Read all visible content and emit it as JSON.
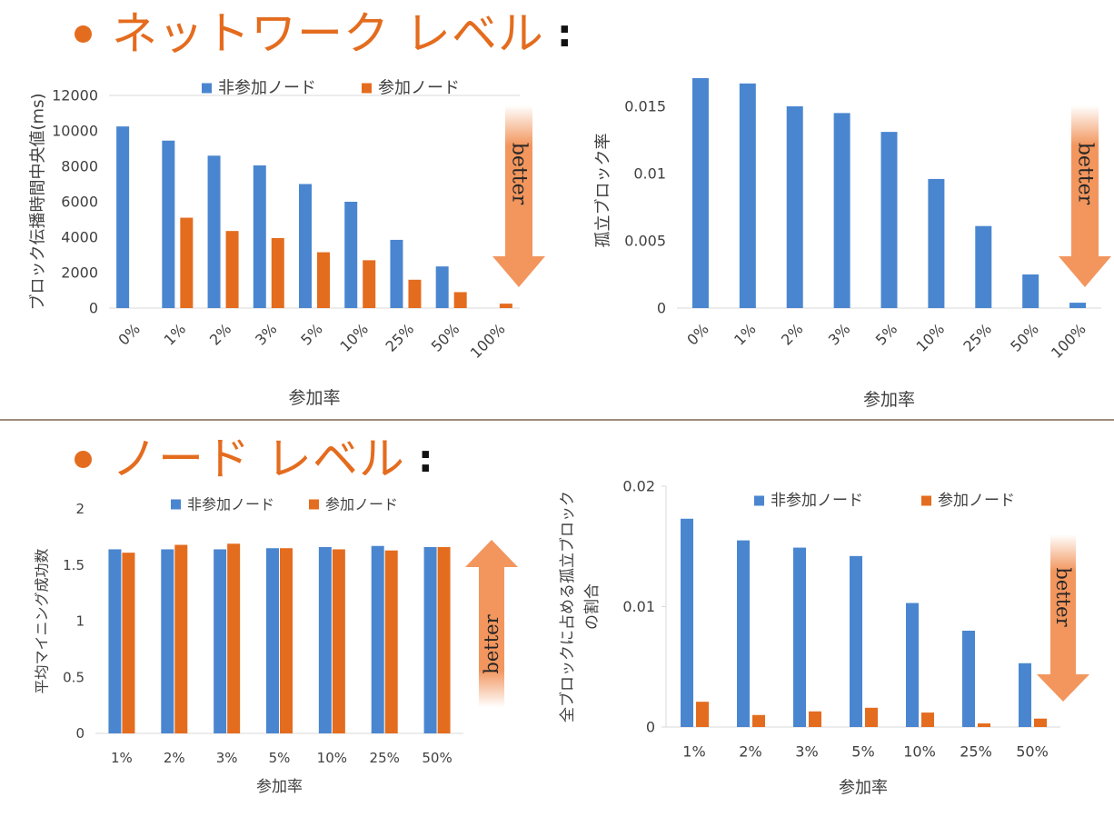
{
  "sections": [
    {
      "title": "ネットワーク レベル",
      "colon": ":"
    },
    {
      "title": "ノード レベル",
      "colon": ":"
    }
  ],
  "colors": {
    "heading": "#E46C1E",
    "non_participant": "#4A86D0",
    "participant": "#E46C1E",
    "arrow": "#F2965E",
    "divider": "#9E8B7D",
    "axis": "#D9D9D9",
    "text": "#404040"
  },
  "better_label": "better",
  "chart_data": [
    {
      "type": "bar",
      "categories": [
        "0%",
        "1%",
        "2%",
        "3%",
        "5%",
        "10%",
        "25%",
        "50%",
        "100%"
      ],
      "series": [
        {
          "name": "非参加ノード",
          "values": [
            10250,
            9450,
            8600,
            8050,
            7000,
            6000,
            3850,
            2350,
            null
          ]
        },
        {
          "name": "参加ノード",
          "values": [
            null,
            5100,
            4350,
            3950,
            3150,
            2700,
            1600,
            900,
            250
          ]
        }
      ],
      "xlabel": "参加率",
      "ylabel": "ブロック伝播時間中央値(ms)",
      "ylim": [
        0,
        12000
      ],
      "yticks": [
        "0",
        "2000",
        "4000",
        "6000",
        "8000",
        "10000",
        "12000"
      ],
      "legend": "top",
      "arrow_direction": "down"
    },
    {
      "type": "bar",
      "categories": [
        "0%",
        "1%",
        "2%",
        "3%",
        "5%",
        "10%",
        "25%",
        "50%",
        "100%"
      ],
      "series": [
        {
          "name": "",
          "values": [
            0.0171,
            0.0167,
            0.015,
            0.0145,
            0.0131,
            0.0096,
            0.0061,
            0.0025,
            0.0004
          ]
        }
      ],
      "xlabel": "参加率",
      "ylabel": "孤立ブロック率",
      "ylim": [
        0,
        0.0175
      ],
      "yticks": [
        "0",
        "0.005",
        "0.01",
        "0.015"
      ],
      "legend": "none",
      "arrow_direction": "down"
    },
    {
      "type": "bar",
      "categories": [
        "1%",
        "2%",
        "3%",
        "5%",
        "10%",
        "25%",
        "50%"
      ],
      "series": [
        {
          "name": "非参加ノード",
          "values": [
            1.64,
            1.64,
            1.64,
            1.65,
            1.66,
            1.67,
            1.66
          ]
        },
        {
          "name": "参加ノード",
          "values": [
            1.61,
            1.68,
            1.69,
            1.65,
            1.64,
            1.63,
            1.66
          ]
        }
      ],
      "xlabel": "参加率",
      "ylabel": "平均マイニング成功数",
      "ylim": [
        0,
        2
      ],
      "yticks": [
        "0",
        "0.5",
        "1",
        "1.5",
        "2"
      ],
      "legend": "top",
      "arrow_direction": "up"
    },
    {
      "type": "bar",
      "categories": [
        "1%",
        "2%",
        "3%",
        "5%",
        "10%",
        "25%",
        "50%"
      ],
      "series": [
        {
          "name": "非参加ノード",
          "values": [
            0.0173,
            0.0155,
            0.0149,
            0.0142,
            0.0103,
            0.008,
            0.0053
          ]
        },
        {
          "name": "参加ノード",
          "values": [
            0.0021,
            0.001,
            0.0013,
            0.0016,
            0.0012,
            0.0003,
            0.0007
          ]
        }
      ],
      "xlabel": "参加率",
      "ylabel": [
        "全ブロックに占める孤立ブロック",
        "の割合"
      ],
      "ylim": [
        0,
        0.02
      ],
      "yticks": [
        "0",
        "0.01",
        "0.02"
      ],
      "legend": "top",
      "arrow_direction": "down"
    }
  ]
}
